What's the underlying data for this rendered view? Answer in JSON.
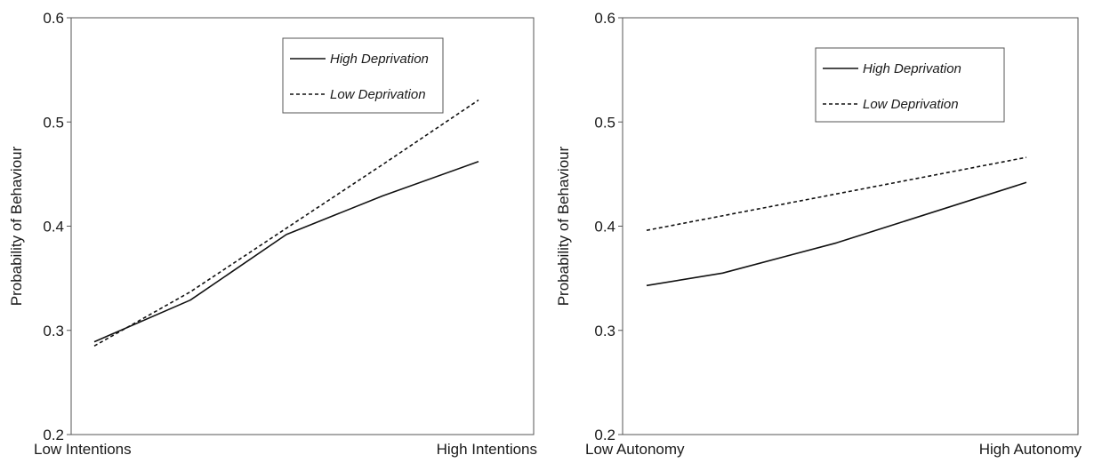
{
  "chart_data": [
    {
      "type": "line",
      "x": [
        "Low Intentions",
        "High Intentions"
      ],
      "ylabel": "Probability of Behaviour",
      "ylim": [
        0.2,
        0.6
      ],
      "yticks": [
        "0.2",
        "0.3",
        "0.4",
        "0.5",
        "0.6"
      ],
      "grid": false,
      "legend_position": "top-right",
      "series": [
        {
          "name": "High Deprivation",
          "style": "solid",
          "color": "#111111",
          "points": [
            [
              0.0,
              0.289
            ],
            [
              0.25,
              0.329
            ],
            [
              0.5,
              0.392
            ],
            [
              0.75,
              0.429
            ],
            [
              1.0,
              0.462
            ]
          ]
        },
        {
          "name": "Low Deprivation",
          "style": "dashed",
          "color": "#111111",
          "points": [
            [
              0.0,
              0.285
            ],
            [
              0.25,
              0.337
            ],
            [
              0.5,
              0.398
            ],
            [
              0.75,
              0.459
            ],
            [
              1.0,
              0.521
            ]
          ]
        }
      ]
    },
    {
      "type": "line",
      "x": [
        "Low Autonomy",
        "High Autonomy"
      ],
      "ylabel": "Probability of Behaviour",
      "ylim": [
        0.2,
        0.6
      ],
      "yticks": [
        "0.2",
        "0.3",
        "0.4",
        "0.5",
        "0.6"
      ],
      "grid": false,
      "legend_position": "top-right",
      "series": [
        {
          "name": "High Deprivation",
          "style": "solid",
          "color": "#111111",
          "points": [
            [
              0.0,
              0.343
            ],
            [
              0.2,
              0.355
            ],
            [
              0.5,
              0.384
            ],
            [
              1.0,
              0.442
            ]
          ]
        },
        {
          "name": "Low Deprivation",
          "style": "dashed",
          "color": "#111111",
          "points": [
            [
              0.0,
              0.396
            ],
            [
              0.5,
              0.431
            ],
            [
              1.0,
              0.466
            ]
          ]
        }
      ]
    }
  ]
}
